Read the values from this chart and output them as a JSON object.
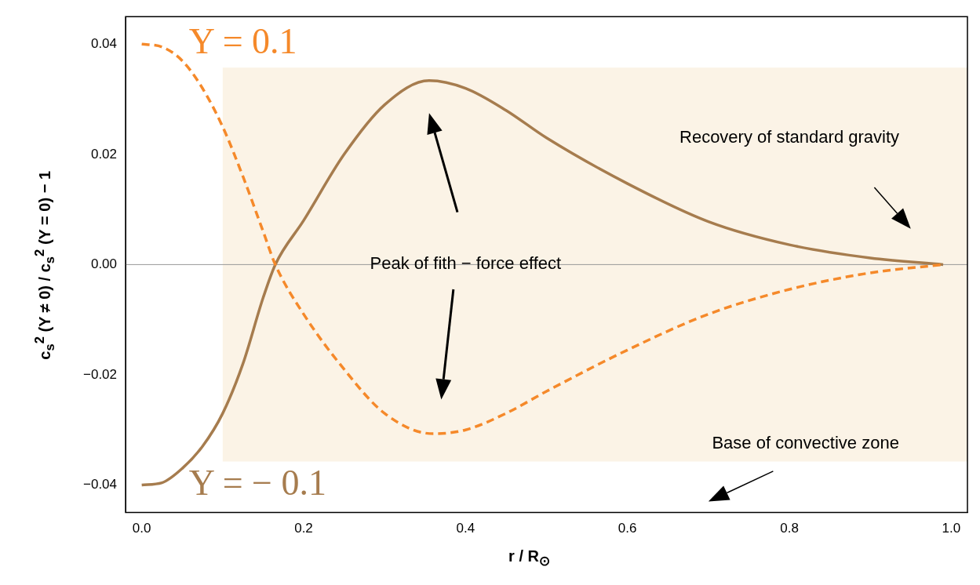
{
  "chart_data": {
    "type": "line",
    "xlabel": "r / R$_{⊙}$",
    "ylabel": "c$_{s}$$^{2}$ (Y ≠ 0) / c$_{s}$$^{2}$ (Y = 0) − 1",
    "series": [
      {
        "name": "Y = 0.1",
        "color": "#f5892a",
        "line_style": "dashed",
        "x": [
          0,
          0.025,
          0.05,
          0.075,
          0.1,
          0.125,
          0.15,
          0.165,
          0.2,
          0.25,
          0.3,
          0.36,
          0.4,
          0.45,
          0.5,
          0.6,
          0.7,
          0.8,
          0.9,
          0.99
        ],
        "values": [
          0.04,
          0.0395,
          0.037,
          0.032,
          0.025,
          0.016,
          0.006,
          0,
          -0.009,
          -0.019,
          -0.027,
          -0.0307,
          -0.03,
          -0.027,
          -0.023,
          -0.0155,
          -0.009,
          -0.0045,
          -0.0015,
          0
        ]
      },
      {
        "name": "Y = − 0.1",
        "color": "#a67c4e",
        "line_style": "solid",
        "x": [
          0,
          0.025,
          0.05,
          0.075,
          0.1,
          0.125,
          0.15,
          0.165,
          0.2,
          0.25,
          0.3,
          0.355,
          0.4,
          0.45,
          0.5,
          0.6,
          0.7,
          0.8,
          0.9,
          0.99
        ],
        "values": [
          -0.04,
          -0.0396,
          -0.037,
          -0.033,
          -0.027,
          -0.018,
          -0.006,
          0,
          0.008,
          0.02,
          0.029,
          0.0334,
          0.032,
          0.028,
          0.023,
          0.0147,
          0.0078,
          0.0036,
          0.0012,
          0
        ]
      }
    ],
    "xlim": [
      -0.02,
      1.02
    ],
    "ylim": [
      -0.045,
      0.045
    ],
    "xticks": [
      {
        "value": 0,
        "label": "0.0"
      },
      0.2,
      0.4,
      0.6,
      0.8,
      {
        "value": 1,
        "label": "1.0"
      }
    ],
    "yticks": [
      {
        "value": -0.04,
        "label": "−0.04"
      },
      {
        "value": -0.02,
        "label": "−0.02"
      },
      {
        "value": 0,
        "label": "0.00"
      },
      0.02,
      0.04
    ],
    "ref_lines": [
      {
        "axis": "y",
        "value": 0,
        "color": "#999999"
      }
    ],
    "bands": [
      {
        "axis": "x",
        "from": 0.1,
        "to": 1.02,
        "color": "#fbf3e6"
      }
    ],
    "annotations": [
      "Peak of fith − force effect",
      "Recovery of standard gravity",
      "Base of convective zone"
    ],
    "grid": false,
    "legend": false
  }
}
